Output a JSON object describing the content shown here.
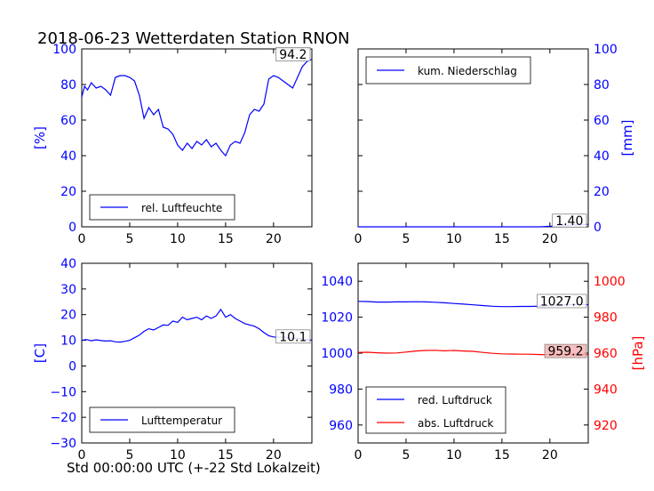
{
  "title": "2018-06-23 Wetterdaten Station RNON",
  "xlabel": "Std 00:00:00 UTC (+-22 Std Lokalzeit)",
  "colors": {
    "blue": "#0000ff",
    "red": "#ff0000",
    "black": "#000000",
    "badge_red": "#f4b4b4"
  },
  "chart_data": [
    {
      "type": "line",
      "name": "humidity",
      "ylabel": "[%]",
      "ylim": [
        0,
        100
      ],
      "yticks": [
        0,
        20,
        40,
        60,
        80,
        100
      ],
      "xlim": [
        0,
        24
      ],
      "xticks": [
        0,
        5,
        10,
        15,
        20
      ],
      "legend": {
        "label": "rel. Luftfeuchte",
        "placement": "lower-left"
      },
      "last_value_label": "94.2",
      "series": [
        {
          "name": "rel. Luftfeuchte",
          "x": [
            0,
            0.3,
            0.6,
            1,
            1.5,
            2,
            2.5,
            3,
            3.5,
            4,
            4.5,
            5,
            5.5,
            6,
            6.5,
            7,
            7.5,
            8,
            8.5,
            9,
            9.5,
            10,
            10.5,
            11,
            11.5,
            12,
            12.5,
            13,
            13.5,
            14,
            14.5,
            15,
            15.5,
            16,
            16.5,
            17,
            17.5,
            18,
            18.5,
            19,
            19.5,
            20,
            20.5,
            21,
            21.5,
            22,
            22.5,
            23,
            23.5,
            24
          ],
          "values": [
            73,
            79,
            77,
            81,
            78,
            79,
            77,
            74,
            84,
            85,
            85,
            84,
            82,
            74,
            61,
            67,
            63,
            66,
            56,
            55,
            52,
            46,
            43,
            47,
            44,
            48,
            46,
            49,
            45,
            47,
            43,
            40,
            46,
            48,
            47,
            53,
            63,
            66,
            65,
            69,
            83,
            85,
            84,
            82,
            80,
            78,
            84,
            90,
            93,
            94.2
          ]
        }
      ]
    },
    {
      "type": "line",
      "name": "precipitation",
      "ylabel": "[mm]",
      "ylim": [
        0,
        100
      ],
      "yticks": [
        0,
        20,
        40,
        60,
        80,
        100
      ],
      "xlim": [
        0,
        24
      ],
      "xticks": [
        0,
        5,
        10,
        15,
        20
      ],
      "legend": {
        "label": "kum. Niederschlag",
        "placement": "top-left"
      },
      "last_value_label": "1.40",
      "series": [
        {
          "name": "kum. Niederschlag",
          "x": [
            0,
            19,
            20,
            21,
            22,
            23,
            24
          ],
          "values": [
            0,
            0,
            0.3,
            0.6,
            0.9,
            1.2,
            1.4
          ]
        }
      ]
    },
    {
      "type": "line",
      "name": "temperature",
      "ylabel": "[C]",
      "ylim": [
        -30,
        40
      ],
      "yticks": [
        -30,
        -20,
        -10,
        0,
        10,
        20,
        30,
        40
      ],
      "xlim": [
        0,
        24
      ],
      "xticks": [
        0,
        5,
        10,
        15,
        20
      ],
      "legend": {
        "label": "Lufttemperatur",
        "placement": "lower-left"
      },
      "last_value_label": "10.1",
      "series": [
        {
          "name": "Lufttemperatur",
          "x": [
            0,
            0.5,
            1,
            1.5,
            2,
            2.5,
            3,
            3.5,
            4,
            4.5,
            5,
            5.5,
            6,
            6.5,
            7,
            7.5,
            8,
            8.5,
            9,
            9.5,
            10,
            10.5,
            11,
            11.5,
            12,
            12.5,
            13,
            13.5,
            14,
            14.5,
            15,
            15.5,
            16,
            16.5,
            17,
            17.5,
            18,
            18.5,
            19,
            19.5,
            20,
            20.5,
            21,
            21.5,
            22,
            22.5,
            23,
            23.5,
            24
          ],
          "values": [
            10,
            10.3,
            9.8,
            10.2,
            9.9,
            9.7,
            9.8,
            9.4,
            9.3,
            9.6,
            10,
            11,
            12,
            13.5,
            14.5,
            14,
            15,
            16,
            15.8,
            17.5,
            17,
            19,
            18,
            18.5,
            19,
            18,
            19.5,
            18.5,
            19.5,
            22,
            19,
            20,
            18.5,
            17.5,
            16.5,
            16,
            15.5,
            14.5,
            13,
            11.8,
            11.3,
            11.2,
            11.3,
            11,
            10.8,
            10.8,
            10.6,
            10.3,
            10.1
          ]
        }
      ]
    },
    {
      "type": "line",
      "name": "pressure",
      "ylabel": "[hPa]",
      "ylim": [
        950,
        1050
      ],
      "yticks": [
        960,
        980,
        1000,
        1020,
        1040
      ],
      "y2lim": [
        910,
        1010
      ],
      "y2ticks": [
        920,
        940,
        960,
        980,
        1000
      ],
      "xlim": [
        0,
        24
      ],
      "xticks": [
        0,
        5,
        10,
        15,
        20
      ],
      "legend": {
        "placement": "lower-left",
        "labels": [
          "red. Luftdruck",
          "abs. Luftdruck"
        ]
      },
      "last_value_labels": [
        "1027.0",
        "959.2"
      ],
      "series": [
        {
          "name": "red. Luftdruck",
          "axis": "left",
          "x": [
            0,
            1,
            2,
            3,
            4,
            5,
            6,
            7,
            8,
            9,
            10,
            11,
            12,
            13,
            14,
            15,
            16,
            17,
            18,
            19,
            20,
            21,
            22,
            23,
            24
          ],
          "values": [
            1028.8,
            1028.7,
            1028.4,
            1028.4,
            1028.5,
            1028.5,
            1028.6,
            1028.5,
            1028.3,
            1028,
            1027.6,
            1027.3,
            1026.9,
            1026.5,
            1026.1,
            1025.9,
            1025.9,
            1026,
            1026,
            1026.2,
            1026.5,
            1026.8,
            1027,
            1027.1,
            1027
          ]
        },
        {
          "name": "abs. Luftdruck",
          "axis": "right",
          "x": [
            0,
            1,
            2,
            3,
            4,
            5,
            6,
            7,
            8,
            9,
            10,
            11,
            12,
            13,
            14,
            15,
            16,
            17,
            18,
            19,
            20,
            21,
            22,
            23,
            24
          ],
          "values": [
            960.4,
            960.5,
            960.2,
            960,
            960.1,
            960.6,
            961.2,
            961.5,
            961.6,
            961.3,
            961.5,
            961.2,
            961,
            960.4,
            959.9,
            959.6,
            959.5,
            959.4,
            959.4,
            959.2,
            959.1,
            959.2,
            959.3,
            959.2,
            959.2
          ]
        }
      ]
    }
  ]
}
